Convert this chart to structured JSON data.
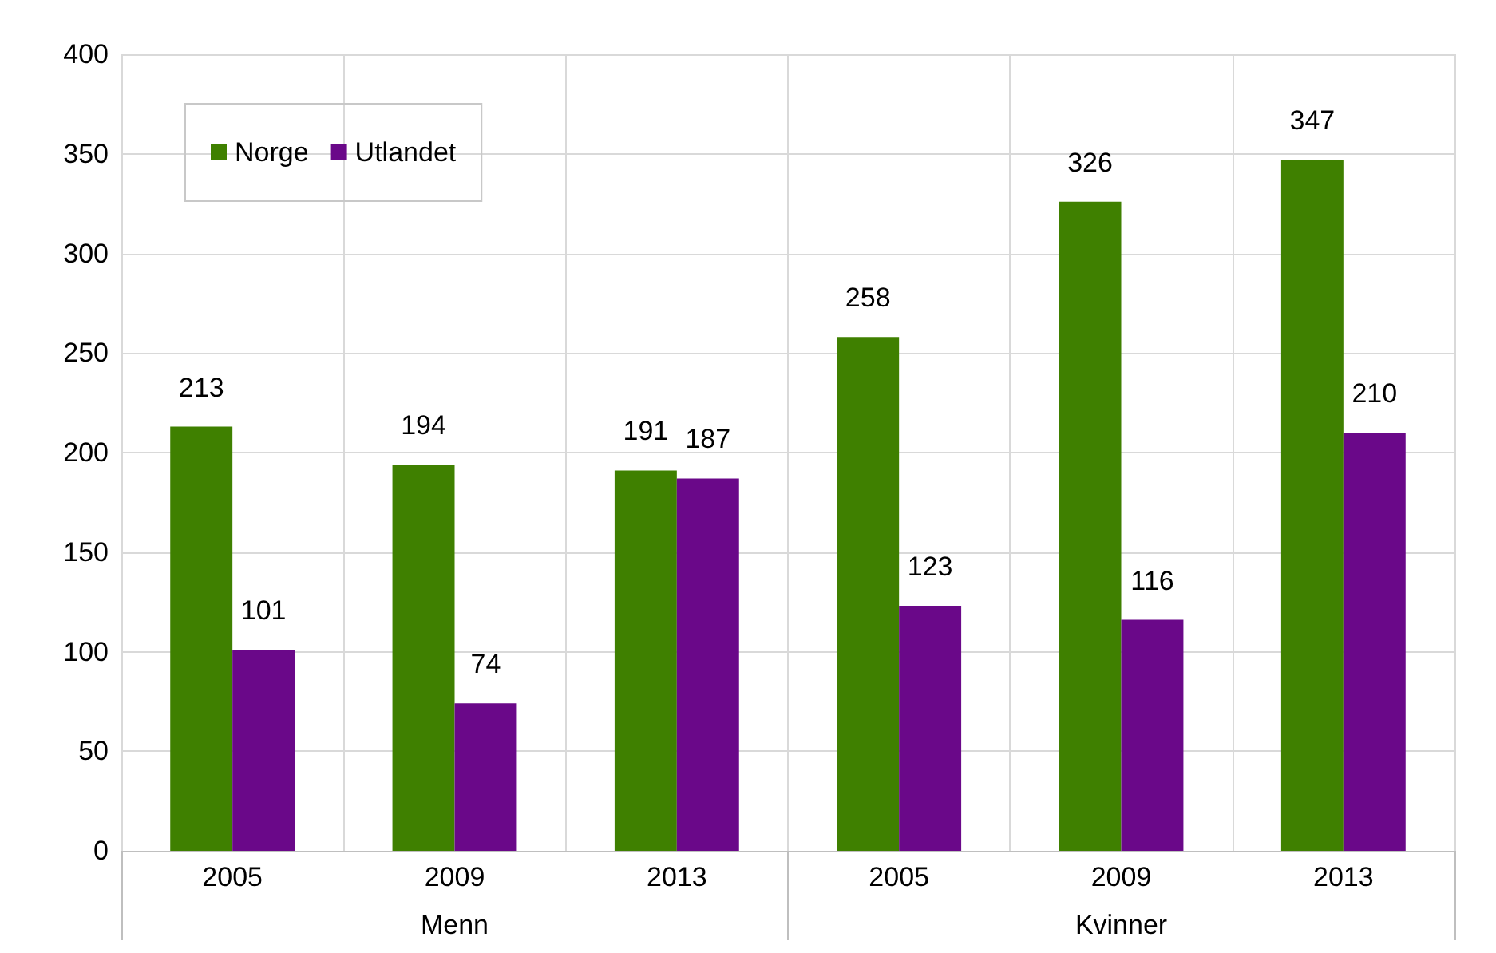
{
  "chart_data": {
    "type": "bar",
    "categories": [
      "2005",
      "2009",
      "2013",
      "2005",
      "2009",
      "2013"
    ],
    "series": [
      {
        "name": "Norge",
        "color": "#3f8000",
        "values": [
          213,
          194,
          191,
          258,
          326,
          347
        ]
      },
      {
        "name": "Utlandet",
        "color": "#6a0889",
        "values": [
          101,
          74,
          187,
          123,
          116,
          210
        ]
      }
    ],
    "annotations": [
      "Menn",
      "Kvinner"
    ],
    "ylim": [
      0,
      400
    ],
    "yticks": [
      0,
      50,
      100,
      150,
      200,
      250,
      300,
      350,
      400
    ],
    "grid": true,
    "legend": "top left",
    "data_labels": true
  }
}
